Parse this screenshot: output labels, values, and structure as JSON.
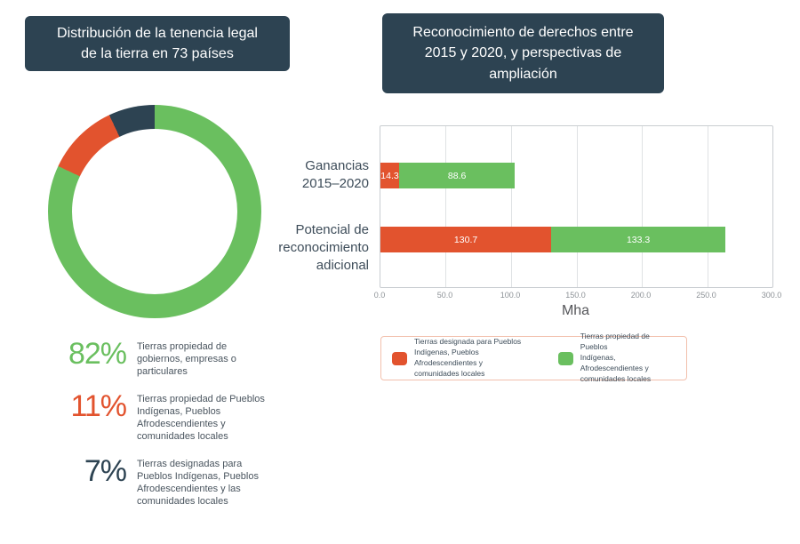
{
  "theme": {
    "header_bg": "#2d4352",
    "green": "#6abf5f",
    "red": "#e2532e",
    "navy": "#2d4352",
    "text_dark": "#3d4c59",
    "text_gray": "#8d9297",
    "white": "#ffffff",
    "legend_border": "#f2c0ad"
  },
  "left_panel": {
    "title": [
      "Distribución de la tenencia legal",
      "de la tierra en 73 países"
    ],
    "legend": [
      {
        "pct": "82%",
        "color": "#6abf5f",
        "desc": [
          "Tierras propiedad de",
          "gobiernos, empresas o",
          "particulares"
        ]
      },
      {
        "pct": "11%",
        "color": "#e2532e",
        "desc": [
          "Tierras propiedad de Pueblos",
          "Indígenas, Pueblos",
          "Afrodescendientes y",
          "comunidades locales"
        ]
      },
      {
        "pct": "7%",
        "color": "#2d4352",
        "desc": [
          "Tierras designadas para",
          "Pueblos Indígenas, Pueblos",
          "Afrodescendientes y las",
          "comunidades locales"
        ]
      }
    ]
  },
  "right_panel": {
    "title": [
      "Reconocimiento de derechos entre",
      "2015 y 2020, y perspectivas de",
      "ampliación"
    ],
    "rows": [
      {
        "label": [
          "Ganancias",
          "2015–2020"
        ]
      },
      {
        "label": [
          "Potencial de",
          "reconocimiento",
          "adicional"
        ]
      }
    ],
    "legend": [
      {
        "color": "#e2532e",
        "text": [
          "Tierras designada para Pueblos",
          "Indígenas, Pueblos Afrodescendientes y",
          "comunidades locales"
        ]
      },
      {
        "color": "#6abf5f",
        "text": [
          "Tierras propiedad de Pueblos",
          "Indígenas, Afrodescendientes y",
          "comunidades locales"
        ]
      }
    ]
  },
  "chart_data": [
    {
      "type": "pie",
      "title": "Distribución de la tenencia legal de la tierra en 73 países",
      "labels": [
        "Tierras propiedad de gobiernos, empresas o particulares",
        "Tierras propiedad de Pueblos Indígenas, Pueblos Afrodescendientes y comunidades locales",
        "Tierras designadas para Pueblos Indígenas, Pueblos Afrodescendientes y las comunidades locales"
      ],
      "values": [
        82,
        11,
        7
      ],
      "colors": [
        "#6abf5f",
        "#e2532e",
        "#2d4352"
      ],
      "donut": true,
      "start_angle": "top",
      "direction": "clockwise"
    },
    {
      "type": "bar",
      "orientation": "horizontal",
      "stacked": true,
      "title": "Reconocimiento de derechos entre 2015 y 2020, y perspectivas de ampliación",
      "categories": [
        "Ganancias 2015–2020",
        "Potencial de reconocimiento adicional"
      ],
      "series": [
        {
          "name": "Tierras designada para Pueblos Indígenas, Pueblos Afrodescendientes y comunidades locales",
          "color": "#e2532e",
          "values": [
            14.3,
            130.7
          ]
        },
        {
          "name": "Tierras propiedad de Pueblos Indígenas, Afrodescendientes y comunidades locales",
          "color": "#6abf5f",
          "values": [
            88.6,
            133.3
          ]
        }
      ],
      "xlabel": "Mha",
      "xlim": [
        0,
        300
      ],
      "xticks": [
        "0.0",
        "50.0",
        "100.0",
        "150.0",
        "200.0",
        "250.0",
        "300.0"
      ],
      "grid": true,
      "legend_position": "bottom"
    }
  ]
}
